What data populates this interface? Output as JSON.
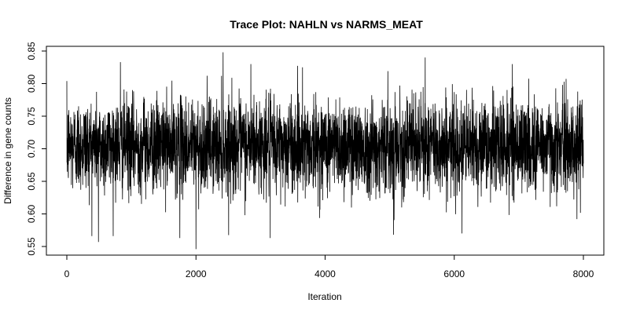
{
  "chart_data": {
    "type": "line",
    "title": "Trace Plot: NAHLN vs NARMS_MEAT",
    "xlabel": "Iteration",
    "ylabel": "Difference in gene counts",
    "xlim": [
      0,
      8000
    ],
    "ylim": [
      0.545,
      0.85
    ],
    "x_ticks": [
      "0",
      "2000",
      "4000",
      "6000",
      "8000"
    ],
    "y_ticks": [
      "0.55",
      "0.60",
      "0.65",
      "0.70",
      "0.75",
      "0.80",
      "0.85"
    ],
    "grid": false,
    "legend": "none",
    "line_color": "#000000",
    "series": [
      {
        "name": "",
        "summary": {
          "center": 0.705,
          "typical_low": 0.63,
          "typical_high": 0.78,
          "min": 0.546,
          "max": 0.848
        },
        "n_iterations": 8000,
        "extremes": [
          {
            "x": 490,
            "y": 0.557
          },
          {
            "x": 830,
            "y": 0.833
          },
          {
            "x": 1750,
            "y": 0.563
          },
          {
            "x": 2000,
            "y": 0.546
          },
          {
            "x": 2420,
            "y": 0.848
          },
          {
            "x": 2850,
            "y": 0.83
          },
          {
            "x": 3150,
            "y": 0.563
          },
          {
            "x": 3650,
            "y": 0.825
          },
          {
            "x": 5060,
            "y": 0.568
          },
          {
            "x": 5550,
            "y": 0.84
          },
          {
            "x": 6120,
            "y": 0.57
          },
          {
            "x": 6900,
            "y": 0.83
          },
          {
            "x": 7900,
            "y": 0.592
          }
        ]
      }
    ]
  }
}
